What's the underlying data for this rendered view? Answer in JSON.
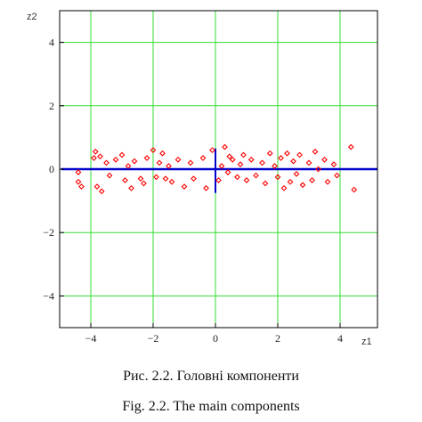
{
  "chart_data": {
    "type": "scatter",
    "xlabel": "z1",
    "ylabel": "z2",
    "xlim": [
      -5,
      5.2
    ],
    "ylim": [
      -5,
      5
    ],
    "xticks": [
      -4,
      -2,
      0,
      2,
      4
    ],
    "yticks": [
      4,
      2,
      0,
      -2,
      -4
    ],
    "xtick_labels": [
      "−4",
      "−2",
      "0",
      "2",
      "4"
    ],
    "ytick_labels": [
      "4",
      "2",
      "0",
      "−2",
      "−4"
    ],
    "grid": true,
    "colors": {
      "grid": "#33dd33",
      "points": "#ff0000",
      "axes_lines": "#0000cc",
      "frame": "#000000"
    },
    "points": [
      [
        -4.4,
        -0.1
      ],
      [
        -4.4,
        -0.4
      ],
      [
        -4.3,
        -0.55
      ],
      [
        -3.9,
        0.35
      ],
      [
        -3.85,
        0.55
      ],
      [
        -3.7,
        0.4
      ],
      [
        -3.8,
        -0.55
      ],
      [
        -3.65,
        -0.7
      ],
      [
        -3.5,
        0.2
      ],
      [
        -3.4,
        -0.2
      ],
      [
        -3.2,
        0.3
      ],
      [
        -3.0,
        0.45
      ],
      [
        -2.9,
        -0.35
      ],
      [
        -2.8,
        0.1
      ],
      [
        -2.7,
        -0.6
      ],
      [
        -2.6,
        0.25
      ],
      [
        -2.4,
        -0.3
      ],
      [
        -2.3,
        -0.45
      ],
      [
        -2.2,
        0.35
      ],
      [
        -2.0,
        0.6
      ],
      [
        -1.9,
        -0.25
      ],
      [
        -1.8,
        0.2
      ],
      [
        -1.7,
        0.5
      ],
      [
        -1.6,
        -0.3
      ],
      [
        -1.5,
        0.1
      ],
      [
        -1.4,
        -0.4
      ],
      [
        -1.2,
        0.3
      ],
      [
        -1.0,
        -0.55
      ],
      [
        -0.8,
        0.2
      ],
      [
        -0.7,
        -0.3
      ],
      [
        -0.4,
        0.35
      ],
      [
        -0.3,
        -0.6
      ],
      [
        -0.1,
        0.6
      ],
      [
        0.1,
        -0.35
      ],
      [
        0.2,
        0.1
      ],
      [
        0.3,
        0.7
      ],
      [
        0.4,
        -0.1
      ],
      [
        0.45,
        0.4
      ],
      [
        0.55,
        0.3
      ],
      [
        0.7,
        -0.25
      ],
      [
        0.8,
        0.15
      ],
      [
        0.9,
        0.45
      ],
      [
        1.0,
        -0.35
      ],
      [
        1.15,
        0.3
      ],
      [
        1.3,
        -0.2
      ],
      [
        1.5,
        0.2
      ],
      [
        1.6,
        -0.45
      ],
      [
        1.75,
        0.5
      ],
      [
        1.9,
        0.1
      ],
      [
        2.0,
        -0.25
      ],
      [
        2.1,
        0.35
      ],
      [
        2.2,
        -0.6
      ],
      [
        2.3,
        0.5
      ],
      [
        2.4,
        -0.4
      ],
      [
        2.5,
        0.25
      ],
      [
        2.6,
        -0.15
      ],
      [
        2.7,
        0.45
      ],
      [
        2.8,
        -0.5
      ],
      [
        3.0,
        0.2
      ],
      [
        3.1,
        -0.35
      ],
      [
        3.2,
        0.55
      ],
      [
        3.3,
        0.0
      ],
      [
        3.5,
        0.3
      ],
      [
        3.6,
        -0.4
      ],
      [
        3.8,
        0.15
      ],
      [
        3.9,
        -0.2
      ],
      [
        4.35,
        0.7
      ],
      [
        4.45,
        -0.65
      ]
    ],
    "axis_lines": {
      "horizontal": {
        "y": 0,
        "x_from": -4.95,
        "x_to": 5.2
      },
      "vertical": {
        "x": 0,
        "y_from": -0.75,
        "y_to": 0.65
      }
    }
  },
  "captions": {
    "uk": "Рис. 2.2. Головні компоненти",
    "en": "Fig. 2.2. The main components"
  }
}
